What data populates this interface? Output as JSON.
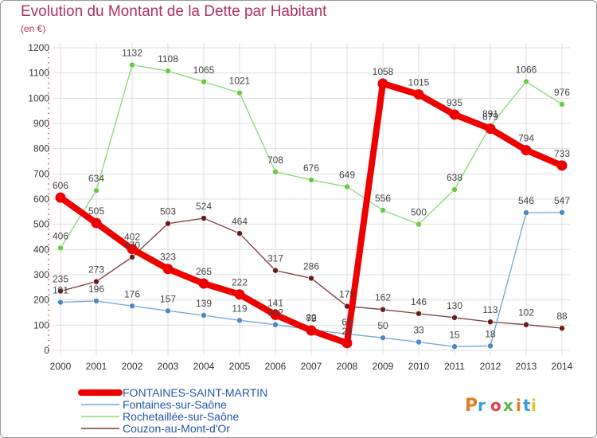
{
  "header": {
    "title": "Evolution du Montant de la Dette par Habitant",
    "subtitle": "(en €)"
  },
  "logo": {
    "text": "Proxiti"
  },
  "colors": {
    "title": "#b03060",
    "grid": "#dddddd"
  },
  "chart_data": {
    "type": "line",
    "title": "Evolution du Montant de la Dette par Habitant",
    "ylabel": "(en €)",
    "x": [
      "2000",
      "2001",
      "2002",
      "2003",
      "2004",
      "2005",
      "2006",
      "2007",
      "2008",
      "2009",
      "2010",
      "2011",
      "2012",
      "2013",
      "2014"
    ],
    "ylim": [
      0,
      1200
    ],
    "yticks": [
      "0",
      "100",
      "200",
      "300",
      "400",
      "500",
      "600",
      "700",
      "800",
      "900",
      "1000",
      "1100",
      "1200"
    ],
    "grid": true,
    "legend_placement": "bottom-left",
    "series": [
      {
        "name": "Rochetaillée-sur-Saône",
        "color": "#88d870",
        "point_color": "#66cc44",
        "style": "thin",
        "values": [
          406,
          634,
          1132,
          1108,
          1065,
          1021,
          708,
          676,
          649,
          556,
          500,
          638,
          891,
          1066,
          976
        ],
        "labels": [
          "406",
          "634",
          "1132",
          "1108",
          "1065",
          "1021",
          "708",
          "676",
          "649",
          "556",
          "500",
          "638",
          "891",
          "1066",
          "976"
        ]
      },
      {
        "name": "Couzon-au-Mont-d'Or",
        "color": "#7a3a3a",
        "point_color": "#6a1a1a",
        "style": "thin",
        "values": [
          235,
          273,
          370,
          503,
          524,
          464,
          317,
          286,
          175,
          162,
          146,
          130,
          113,
          102,
          88
        ],
        "labels": [
          "235",
          "273",
          "370",
          "503",
          "524",
          "464",
          "317",
          "286",
          "175",
          "162",
          "146",
          "130",
          "113",
          "102",
          "88"
        ]
      },
      {
        "name": "Fontaines-sur-Saône",
        "color": "#6ea6d8",
        "point_color": "#4a88c8",
        "style": "thin",
        "values": [
          191,
          196,
          176,
          157,
          139,
          119,
          102,
          82,
          65,
          50,
          33,
          15,
          18,
          546,
          547
        ],
        "labels": [
          "191",
          "196",
          "176",
          "157",
          "139",
          "119",
          "102",
          "82",
          "65",
          "50",
          "33",
          "15",
          "18",
          "546",
          "547"
        ]
      },
      {
        "name": "FONTAINES-SAINT-MARTIN",
        "color": "#ee0000",
        "point_color": "#ee0000",
        "style": "thick",
        "values": [
          606,
          505,
          402,
          323,
          265,
          222,
          141,
          79,
          29,
          1058,
          1015,
          935,
          879,
          794,
          733
        ],
        "labels": [
          "606",
          "505",
          "402",
          "323",
          "265",
          "222",
          "141",
          "79",
          "29",
          "1058",
          "1015",
          "935",
          "879",
          "794",
          "733"
        ]
      }
    ],
    "legend": [
      {
        "name": "FONTAINES-SAINT-MARTIN",
        "color": "#ee0000",
        "style": "thick"
      },
      {
        "name": "Fontaines-sur-Saône",
        "color": "#6ea6d8",
        "style": "thin"
      },
      {
        "name": "Rochetaillée-sur-Saône",
        "color": "#88d870",
        "style": "thin"
      },
      {
        "name": "Couzon-au-Mont-d'Or",
        "color": "#7a3a3a",
        "style": "thin"
      }
    ]
  }
}
